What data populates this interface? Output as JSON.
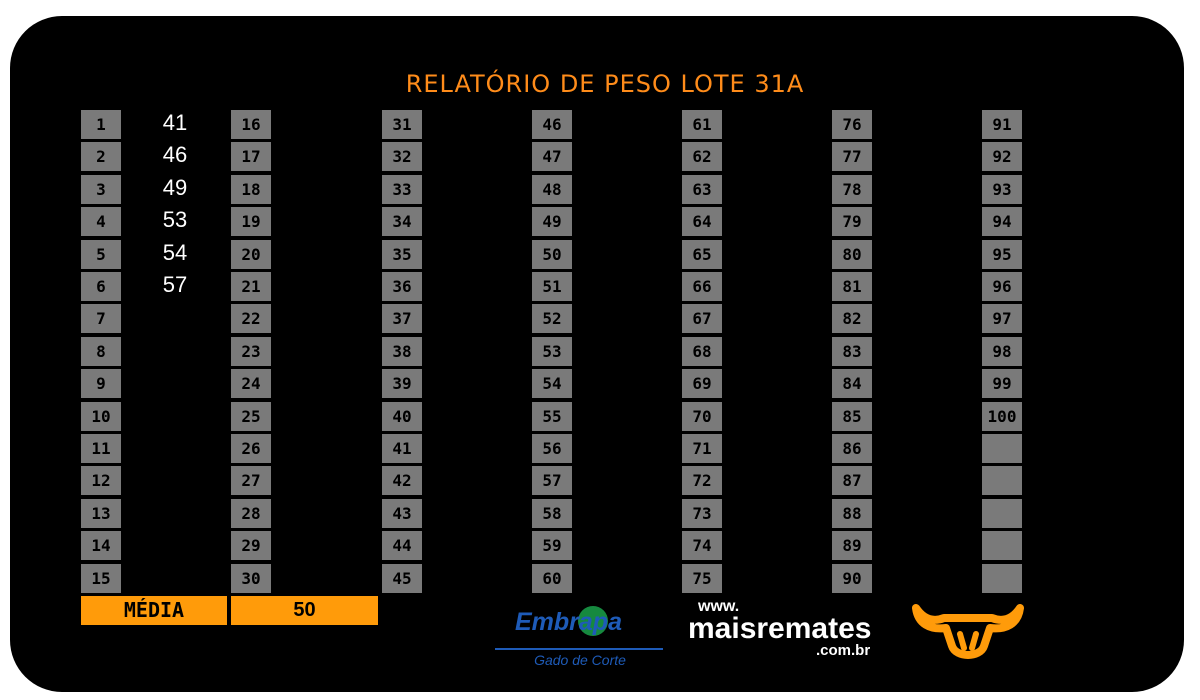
{
  "title": "RELATÓRIO DE PESO LOTE 31A",
  "columns": [
    [
      "1",
      "2",
      "3",
      "4",
      "5",
      "6",
      "7",
      "8",
      "9",
      "10",
      "11",
      "12",
      "13",
      "14",
      "15"
    ],
    [
      "16",
      "17",
      "18",
      "19",
      "20",
      "21",
      "22",
      "23",
      "24",
      "25",
      "26",
      "27",
      "28",
      "29",
      "30"
    ],
    [
      "31",
      "32",
      "33",
      "34",
      "35",
      "36",
      "37",
      "38",
      "39",
      "40",
      "41",
      "42",
      "43",
      "44",
      "45"
    ],
    [
      "46",
      "47",
      "48",
      "49",
      "50",
      "51",
      "52",
      "53",
      "54",
      "55",
      "56",
      "57",
      "58",
      "59",
      "60"
    ],
    [
      "61",
      "62",
      "63",
      "64",
      "65",
      "66",
      "67",
      "68",
      "69",
      "70",
      "71",
      "72",
      "73",
      "74",
      "75"
    ],
    [
      "76",
      "77",
      "78",
      "79",
      "80",
      "81",
      "82",
      "83",
      "84",
      "85",
      "86",
      "87",
      "88",
      "89",
      "90"
    ],
    [
      "91",
      "92",
      "93",
      "94",
      "95",
      "96",
      "97",
      "98",
      "99",
      "100",
      "",
      "",
      "",
      "",
      ""
    ]
  ],
  "weights": [
    "41",
    "46",
    "49",
    "53",
    "54",
    "57"
  ],
  "media": {
    "label": "MÉDIA",
    "value": "50"
  },
  "logos": {
    "embrapa": {
      "name": "Embrapa",
      "subtitle": "Gado de Corte"
    },
    "maisremates": {
      "www": "www.",
      "name": "maisremates",
      "domain": ".com.br"
    }
  },
  "colors": {
    "background": "#000000",
    "accent": "#ff9b0a",
    "title": "#ff8c1a",
    "cell": "#7a7a7a",
    "embrapa_blue": "#1e5bb8"
  }
}
